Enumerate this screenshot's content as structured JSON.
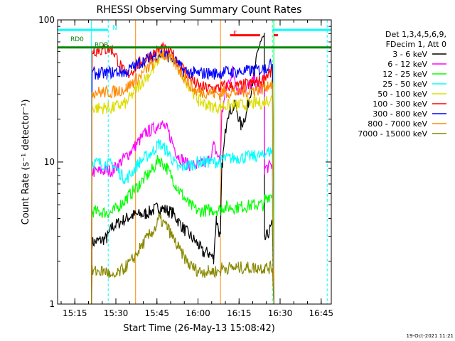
{
  "chart_data": {
    "type": "line",
    "title": "RHESSI Observing Summary Count Rates",
    "xlabel": "Start Time (26-May-13 15:08:42)",
    "ylabel": "Count Rate (s⁻¹ detector⁻¹)",
    "yscale": "log",
    "ylim": [
      1,
      100
    ],
    "xlim_minutes": [
      0,
      100
    ],
    "y_ticks": [
      {
        "value": 1,
        "label": "1"
      },
      {
        "value": 10,
        "label": "10"
      },
      {
        "value": 100,
        "label": "100"
      }
    ],
    "x_ticks": [
      {
        "t": 6.3,
        "label": "15:15"
      },
      {
        "t": 21.3,
        "label": "15:30"
      },
      {
        "t": 36.3,
        "label": "15:45"
      },
      {
        "t": 51.3,
        "label": "16:00"
      },
      {
        "t": 66.3,
        "label": "16:15"
      },
      {
        "t": 81.3,
        "label": "16:30"
      },
      {
        "t": 96.3,
        "label": "16:45"
      }
    ],
    "legend": {
      "header": [
        "Det 1,3,4,5,6,9,",
        "FDecim 1, Att 0"
      ],
      "position": "right"
    },
    "series": [
      {
        "name": "3 - 6 keV",
        "color": "#000000",
        "points": [
          [
            12.4,
            1
          ],
          [
            12.6,
            2.7
          ],
          [
            18,
            2.9
          ],
          [
            20,
            3.5
          ],
          [
            27,
            4.2
          ],
          [
            32,
            4.3
          ],
          [
            37,
            4.8
          ],
          [
            42,
            4.4
          ],
          [
            46,
            3.4
          ],
          [
            51.5,
            2.6
          ],
          [
            53,
            2.3
          ],
          [
            55,
            2.3
          ],
          [
            57,
            2.1
          ],
          [
            58,
            4
          ],
          [
            59.5,
            2.9
          ],
          [
            60,
            9
          ],
          [
            62,
            22
          ],
          [
            65,
            25
          ],
          [
            67,
            18
          ],
          [
            69,
            22
          ],
          [
            72,
            45
          ],
          [
            74,
            70
          ],
          [
            75.5,
            75
          ],
          [
            75.6,
            2.8
          ],
          [
            78.5,
            3.6
          ],
          [
            79,
            1
          ]
        ]
      },
      {
        "name": "6 - 12 keV",
        "color": "#ff00ff",
        "points": [
          [
            12.4,
            1
          ],
          [
            12.6,
            8.5
          ],
          [
            18,
            8.7
          ],
          [
            20,
            8.7
          ],
          [
            27,
            12
          ],
          [
            32,
            16
          ],
          [
            36,
            17.5
          ],
          [
            37,
            19
          ],
          [
            40,
            17
          ],
          [
            44,
            11
          ],
          [
            48,
            9.5
          ],
          [
            51.5,
            9.5
          ],
          [
            53,
            9.7
          ],
          [
            55,
            10
          ],
          [
            57,
            13
          ],
          [
            59.5,
            10
          ],
          [
            60,
            22
          ],
          [
            62,
            35
          ],
          [
            64,
            44
          ],
          [
            66,
            32
          ],
          [
            69,
            33
          ],
          [
            72,
            38
          ],
          [
            74,
            32
          ],
          [
            75.5,
            40
          ],
          [
            75.6,
            9
          ],
          [
            78.5,
            9.5
          ],
          [
            79,
            1
          ]
        ]
      },
      {
        "name": "12 - 25 keV",
        "color": "#00ff00",
        "points": [
          [
            12.4,
            1
          ],
          [
            12.6,
            4.5
          ],
          [
            18,
            4.4
          ],
          [
            20,
            4.4
          ],
          [
            25,
            5.5
          ],
          [
            30,
            7
          ],
          [
            35,
            9
          ],
          [
            37,
            10.5
          ],
          [
            40,
            9
          ],
          [
            44,
            6.5
          ],
          [
            48,
            5
          ],
          [
            51.5,
            4.5
          ],
          [
            55,
            4.6
          ],
          [
            59.5,
            4.6
          ],
          [
            60,
            4.8
          ],
          [
            66,
            4.8
          ],
          [
            72,
            5
          ],
          [
            75.5,
            5
          ],
          [
            75.6,
            5.5
          ],
          [
            78.5,
            6
          ],
          [
            79,
            1
          ]
        ]
      },
      {
        "name": "25 - 50 keV",
        "color": "#00ffff",
        "points": [
          [
            12.4,
            1
          ],
          [
            12.6,
            10
          ],
          [
            18,
            9.6
          ],
          [
            20,
            9.6
          ],
          [
            25,
            7.5
          ],
          [
            30,
            10
          ],
          [
            35,
            12
          ],
          [
            37,
            13.5
          ],
          [
            40,
            12
          ],
          [
            44,
            9
          ],
          [
            48,
            9.5
          ],
          [
            51.5,
            10
          ],
          [
            55,
            10
          ],
          [
            59.5,
            10
          ],
          [
            60,
            10.5
          ],
          [
            66,
            10.7
          ],
          [
            72,
            11
          ],
          [
            75.5,
            11
          ],
          [
            75.6,
            11.5
          ],
          [
            78.5,
            12
          ],
          [
            79,
            1
          ]
        ]
      },
      {
        "name": "50 - 100 keV",
        "color": "#dddd00",
        "points": [
          [
            12.4,
            1
          ],
          [
            12.6,
            24
          ],
          [
            18,
            24
          ],
          [
            20,
            24
          ],
          [
            25,
            26
          ],
          [
            30,
            35
          ],
          [
            35,
            45
          ],
          [
            38,
            58
          ],
          [
            42,
            52
          ],
          [
            46,
            40
          ],
          [
            50,
            30
          ],
          [
            51.5,
            27
          ],
          [
            55,
            25
          ],
          [
            59.5,
            24
          ],
          [
            60,
            25
          ],
          [
            66,
            25
          ],
          [
            72,
            26
          ],
          [
            75.5,
            26
          ],
          [
            75.6,
            27
          ],
          [
            78.5,
            28
          ],
          [
            79,
            1
          ]
        ]
      },
      {
        "name": "100 - 300 keV",
        "color": "#ff0000",
        "points": [
          [
            12.4,
            1
          ],
          [
            12.6,
            61
          ],
          [
            18,
            62
          ],
          [
            20,
            62
          ],
          [
            25,
            40
          ],
          [
            30,
            50
          ],
          [
            35,
            58
          ],
          [
            38,
            63
          ],
          [
            42,
            57
          ],
          [
            46,
            45
          ],
          [
            50,
            36
          ],
          [
            51.5,
            34
          ],
          [
            55,
            33
          ],
          [
            59.5,
            33
          ],
          [
            60,
            34
          ],
          [
            66,
            34
          ],
          [
            72,
            36
          ],
          [
            75.5,
            38
          ],
          [
            75.6,
            40
          ],
          [
            78.5,
            43
          ],
          [
            79,
            1
          ]
        ]
      },
      {
        "name": "300 - 800 keV",
        "color": "#0000ff",
        "points": [
          [
            12.4,
            1
          ],
          [
            12.6,
            42
          ],
          [
            18,
            42
          ],
          [
            20,
            43
          ],
          [
            25,
            43
          ],
          [
            30,
            50
          ],
          [
            35,
            55
          ],
          [
            38,
            58
          ],
          [
            42,
            54
          ],
          [
            46,
            44
          ],
          [
            50,
            42
          ],
          [
            51.5,
            42
          ],
          [
            55,
            42
          ],
          [
            59.5,
            42
          ],
          [
            60,
            43
          ],
          [
            66,
            43
          ],
          [
            72,
            44
          ],
          [
            75.5,
            45
          ],
          [
            75.6,
            46
          ],
          [
            78.5,
            49
          ],
          [
            79,
            1
          ]
        ]
      },
      {
        "name": "800 - 7000 keV",
        "color": "#ff8800",
        "points": [
          [
            12.4,
            1
          ],
          [
            12.6,
            31
          ],
          [
            18,
            31
          ],
          [
            20,
            31
          ],
          [
            25,
            33
          ],
          [
            30,
            40
          ],
          [
            35,
            50
          ],
          [
            38,
            58
          ],
          [
            42,
            52
          ],
          [
            46,
            40
          ],
          [
            50,
            32
          ],
          [
            51.5,
            31
          ],
          [
            55,
            31
          ],
          [
            59.5,
            30
          ],
          [
            60,
            31
          ],
          [
            66,
            31
          ],
          [
            72,
            32
          ],
          [
            75.5,
            33
          ],
          [
            75.6,
            34
          ],
          [
            78.5,
            36
          ],
          [
            79,
            1
          ]
        ]
      },
      {
        "name": "7000 - 15000 keV",
        "color": "#888800",
        "points": [
          [
            12.4,
            1
          ],
          [
            12.6,
            1.7
          ],
          [
            18,
            1.7
          ],
          [
            20,
            1.5
          ],
          [
            27,
            2
          ],
          [
            32,
            2.8
          ],
          [
            36,
            3.5
          ],
          [
            37,
            4
          ],
          [
            40,
            3.5
          ],
          [
            44,
            2.5
          ],
          [
            48,
            1.9
          ],
          [
            51.5,
            1.7
          ],
          [
            55,
            1.7
          ],
          [
            59.5,
            1.7
          ],
          [
            60,
            1.8
          ],
          [
            66,
            1.8
          ],
          [
            72,
            1.8
          ],
          [
            75.5,
            1.8
          ],
          [
            75.6,
            1.8
          ],
          [
            78.5,
            1.8
          ],
          [
            79,
            1
          ]
        ]
      }
    ],
    "annotations": [
      {
        "label": "N",
        "color": "#00ffff",
        "y": 85,
        "segments": [
          [
            0,
            18.5
          ],
          [
            78.5,
            100
          ]
        ]
      },
      {
        "label": "F",
        "color": "#ff0000",
        "y": 78,
        "segments": [
          [
            63,
            74
          ],
          [
            79,
            80.5
          ]
        ]
      },
      {
        "label": "RD0",
        "color": "#008800",
        "y": 64,
        "segments": [
          [
            0,
            100
          ]
        ]
      },
      {
        "label": "RDB",
        "color": "#008800",
        "y": 64,
        "segments": []
      }
    ],
    "vlines": [
      {
        "t": 12.4,
        "color": "#00ffff",
        "style": "solid"
      },
      {
        "t": 18.5,
        "color": "#00ffff",
        "style": "dashed"
      },
      {
        "t": 28.5,
        "color": "#ff8800",
        "style": "solid"
      },
      {
        "t": 59.5,
        "color": "#ff8800",
        "style": "solid"
      },
      {
        "t": 78.5,
        "color": "#00ffff",
        "style": "dashed"
      },
      {
        "t": 79,
        "color": "#00ff00",
        "style": "solid"
      },
      {
        "t": 98.5,
        "color": "#00ffff",
        "style": "dashed"
      }
    ],
    "timestamp": "19-Oct-2021 11:21"
  }
}
